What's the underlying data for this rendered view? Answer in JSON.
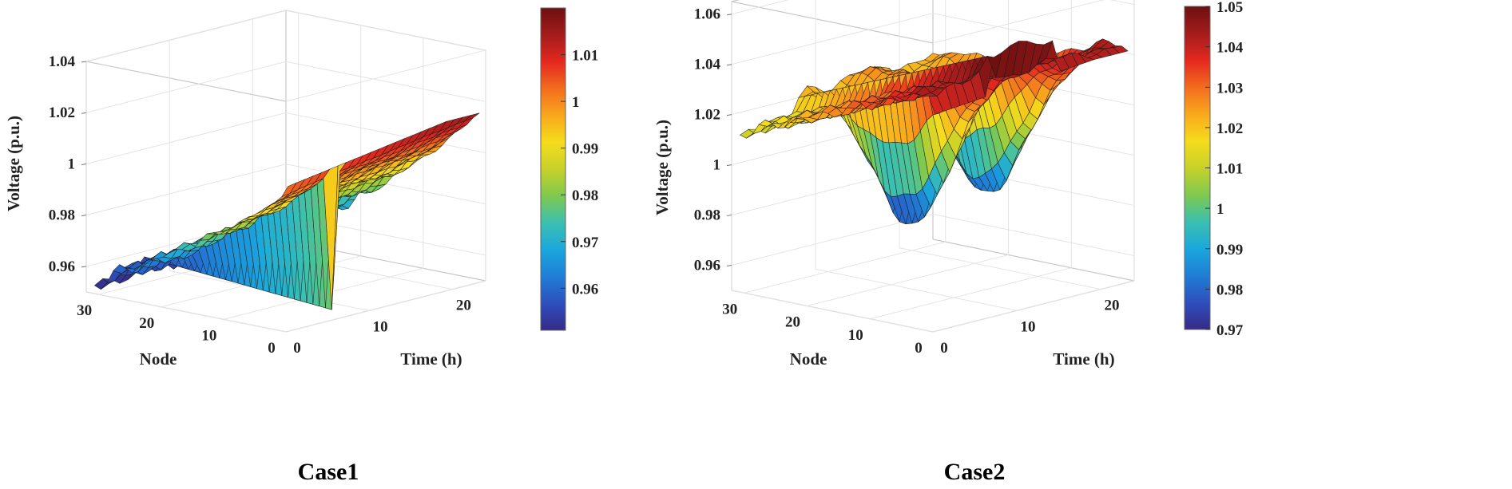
{
  "colormap": [
    "#352a87",
    "#2e4fbd",
    "#1f7ed6",
    "#1ba7dc",
    "#3bbfb0",
    "#7fc94f",
    "#c7d12a",
    "#f5dc1c",
    "#f8a81d",
    "#f36c1e",
    "#e3281f",
    "#a31c1c",
    "#6e1010"
  ],
  "chart_data": [
    {
      "type": "surface3d",
      "caption": "Case1",
      "xlabel": "Time (h)",
      "ylabel": "Node",
      "zlabel": "Voltage (p.u.)",
      "xlim": [
        0,
        24
      ],
      "ylim": [
        0,
        32
      ],
      "zlim": [
        0.95,
        1.04
      ],
      "xticks": [
        0,
        10,
        20
      ],
      "yticks": [
        0,
        10,
        20,
        30
      ],
      "zticks": [
        0.96,
        0.98,
        1,
        1.02,
        1.04
      ],
      "ztick_labels": [
        "0.96",
        "0.98",
        "1",
        "1.02",
        "1.04"
      ],
      "colorbar": {
        "min": 0.951,
        "max": 1.02,
        "ticks": [
          0.96,
          0.97,
          0.98,
          0.99,
          1,
          1.01
        ],
        "tick_labels": [
          "0.96",
          "0.97",
          "0.98",
          "0.99",
          "1",
          "1.01"
        ]
      },
      "time_range": [
        1,
        24
      ],
      "node_range": [
        1,
        32
      ],
      "model": "case1"
    },
    {
      "type": "surface3d",
      "caption": "Case2",
      "xlabel": "Time (h)",
      "ylabel": "Node",
      "zlabel": "Voltage (p.u.)",
      "xlim": [
        0,
        24
      ],
      "ylim": [
        0,
        32
      ],
      "zlim": [
        0.95,
        1.065
      ],
      "xticks": [
        0,
        10,
        20
      ],
      "yticks": [
        0,
        10,
        20,
        30
      ],
      "zticks": [
        0.96,
        0.98,
        1,
        1.02,
        1.04,
        1.06
      ],
      "ztick_labels": [
        "0.96",
        "0.98",
        "1",
        "1.02",
        "1.04",
        "1.06"
      ],
      "colorbar": {
        "min": 0.97,
        "max": 1.05,
        "ticks": [
          0.97,
          0.98,
          0.99,
          1,
          1.01,
          1.02,
          1.03,
          1.04,
          1.05
        ],
        "tick_labels": [
          "0.97",
          "0.98",
          "0.99",
          "1",
          "1.01",
          "1.02",
          "1.03",
          "1.04",
          "1.05"
        ]
      },
      "time_range": [
        1,
        24
      ],
      "node_range": [
        1,
        32
      ],
      "model": "case2"
    }
  ]
}
